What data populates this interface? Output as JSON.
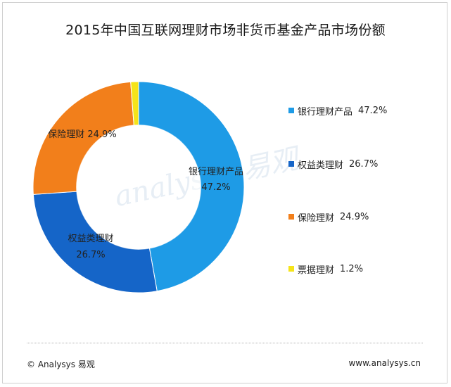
{
  "chart_data": {
    "type": "pie",
    "title": "2015年中国互联网理财市场非货币基金产品市场份额",
    "donut": true,
    "slices": [
      {
        "label": "银行理财产品",
        "value": 47.2,
        "display": "47.2%",
        "color": "#1e9be6"
      },
      {
        "label": "权益类理财",
        "value": 26.7,
        "display": "26.7%",
        "color": "#1565c8"
      },
      {
        "label": "保险理财",
        "value": 24.9,
        "display": "24.9%",
        "color": "#f27f1b"
      },
      {
        "label": "票据理财",
        "value": 1.2,
        "display": "1.2%",
        "color": "#f5e41a"
      }
    ],
    "legend_position": "right"
  },
  "watermark": "analysys 易观",
  "footer": {
    "copyright": "© Analysys 易观",
    "url": "www.analysys.cn"
  }
}
